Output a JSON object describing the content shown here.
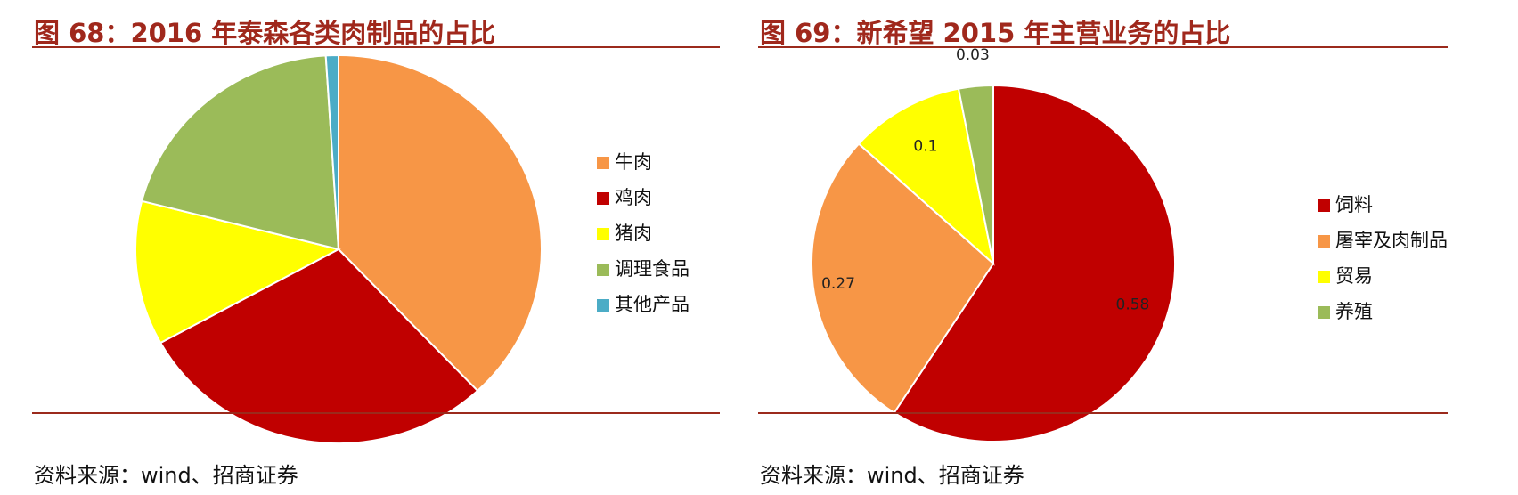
{
  "charts": [
    {
      "title": "图 68：2016 年泰森各类肉制品的占比",
      "source": "资料来源：wind、招商证券"
    },
    {
      "title": "图 69：新希望 2015 年主营业务的占比",
      "source": "资料来源：wind、招商证券"
    }
  ],
  "chart_data": [
    {
      "type": "pie",
      "title": "图 68：2016 年泰森各类肉制品的占比",
      "categories": [
        "牛肉",
        "鸡肉",
        "猪肉",
        "调理食品",
        "其他产品"
      ],
      "values": [
        0.38,
        0.29,
        0.12,
        0.2,
        0.01
      ],
      "colors": [
        "#f79646",
        "#c00000",
        "#ffff00",
        "#9bbb59",
        "#4bacc6"
      ],
      "data_labels": false,
      "legend_position": "right"
    },
    {
      "type": "pie",
      "title": "图 69：新希望 2015 年主营业务的占比",
      "categories": [
        "饲料",
        "屠宰及肉制品",
        "贸易",
        "养殖"
      ],
      "values": [
        0.58,
        0.27,
        0.1,
        0.03
      ],
      "value_labels": [
        "0.58",
        "0.27",
        "0.1",
        "0.03"
      ],
      "colors": [
        "#c00000",
        "#f79646",
        "#ffff00",
        "#9bbb59"
      ],
      "data_labels": true,
      "legend_position": "right"
    }
  ]
}
